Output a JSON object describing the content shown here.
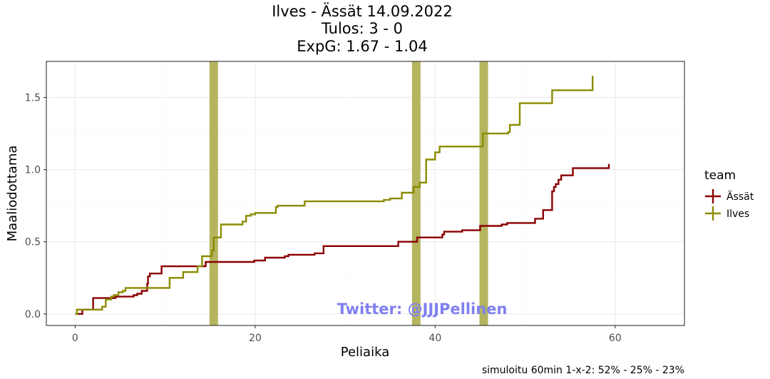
{
  "chart_data": {
    "type": "line",
    "step": true,
    "title_lines": [
      "Ilves - Ässät 14.09.2022",
      "Tulos: 3 - 0",
      "ExpG: 1.67 - 1.04"
    ],
    "xlabel": "Peliaika",
    "ylabel": "Maaliodottama",
    "xlim": [
      -3.2,
      67.7
    ],
    "ylim": [
      -0.08,
      1.75
    ],
    "x_ticks": [
      0,
      20,
      40,
      60
    ],
    "y_ticks": [
      0.0,
      0.5,
      1.0,
      1.5
    ],
    "y_tick_labels": [
      "0.0",
      "0.5",
      "1.0",
      "1.5"
    ],
    "grid": true,
    "legend_title": "team",
    "legend_position": "right",
    "goal_marks": [
      15.4,
      37.9,
      45.4
    ],
    "goal_mark_color": "#b5b560",
    "watermark": "Twitter: @JJJPellinen",
    "caption": "simuloitu 60min 1-x-2:  52% - 25% - 23%",
    "series": [
      {
        "name": "Ässät",
        "color": "#8b0000",
        "x": [
          0.2,
          0.8,
          2.0,
          4.5,
          6.5,
          6.9,
          7.4,
          8.0,
          8.1,
          8.3,
          9.6,
          14.5,
          19.9,
          21.1,
          23.3,
          23.7,
          26.6,
          27.6,
          29.4,
          35.9,
          38.0,
          40.8,
          41.0,
          43.0,
          45.0,
          47.4,
          48.0,
          51.1,
          51.5,
          52.0,
          53.0,
          53.2,
          53.4,
          53.7,
          54.0,
          55.3,
          59.3
        ],
        "y": [
          0.0,
          0.03,
          0.11,
          0.12,
          0.13,
          0.14,
          0.16,
          0.21,
          0.26,
          0.28,
          0.33,
          0.36,
          0.37,
          0.39,
          0.4,
          0.41,
          0.42,
          0.47,
          0.47,
          0.5,
          0.53,
          0.55,
          0.57,
          0.58,
          0.61,
          0.62,
          0.63,
          0.66,
          0.66,
          0.72,
          0.85,
          0.88,
          0.9,
          0.93,
          0.96,
          1.01,
          1.04
        ]
      },
      {
        "name": "Ilves",
        "color": "#8b8b00",
        "x": [
          0.0,
          0.2,
          3.0,
          3.4,
          4.0,
          4.3,
          4.8,
          5.3,
          5.6,
          8.3,
          10.1,
          10.5,
          12.0,
          13.6,
          14.1,
          15.2,
          15.4,
          16.2,
          18.6,
          19.0,
          19.5,
          20.0,
          22.3,
          22.5,
          25.5,
          34.3,
          35.0,
          36.3,
          37.6,
          38.3,
          39.0,
          40.0,
          40.5,
          45.3,
          46.0,
          48.1,
          48.3,
          49.4,
          53.0,
          57.5
        ],
        "y": [
          0.0,
          0.03,
          0.05,
          0.1,
          0.12,
          0.13,
          0.15,
          0.16,
          0.18,
          0.18,
          0.18,
          0.25,
          0.29,
          0.33,
          0.4,
          0.44,
          0.53,
          0.62,
          0.64,
          0.68,
          0.69,
          0.7,
          0.74,
          0.75,
          0.78,
          0.79,
          0.8,
          0.84,
          0.88,
          0.91,
          1.07,
          1.12,
          1.16,
          1.25,
          1.25,
          1.26,
          1.31,
          1.46,
          1.55,
          1.65
        ]
      }
    ]
  }
}
